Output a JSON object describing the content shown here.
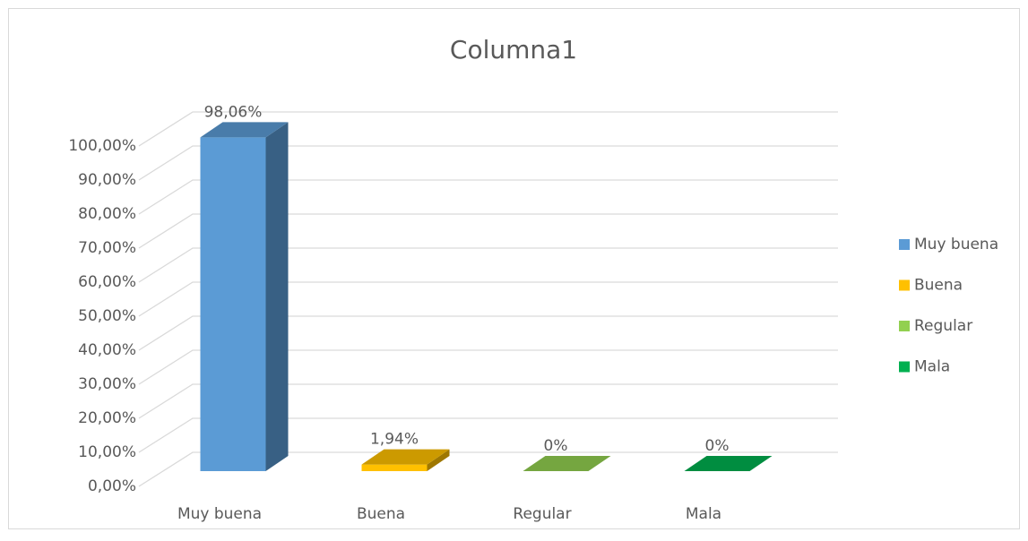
{
  "chart_data": {
    "type": "bar3d",
    "title": "Columna1",
    "categories": [
      "Muy buena",
      "Buena",
      "Regular",
      "Mala"
    ],
    "values": [
      98.06,
      1.94,
      0,
      0
    ],
    "value_labels": [
      "98,06%",
      "1,94%",
      "0%",
      "0%"
    ],
    "colors": [
      "#5b9bd5",
      "#ffc000",
      "#92d050",
      "#00b050"
    ],
    "ylim": [
      0,
      100
    ],
    "yticks": [
      {
        "value": 0,
        "label": "0,00%"
      },
      {
        "value": 10,
        "label": "10,00%"
      },
      {
        "value": 20,
        "label": "20,00%"
      },
      {
        "value": 30,
        "label": "30,00%"
      },
      {
        "value": 40,
        "label": "40,00%"
      },
      {
        "value": 50,
        "label": "50,00%"
      },
      {
        "value": 60,
        "label": "60,00%"
      },
      {
        "value": 70,
        "label": "70,00%"
      },
      {
        "value": 80,
        "label": "80,00%"
      },
      {
        "value": 90,
        "label": "90,00%"
      },
      {
        "value": 100,
        "label": "100,00%"
      }
    ],
    "grid": true,
    "legend": "right"
  }
}
